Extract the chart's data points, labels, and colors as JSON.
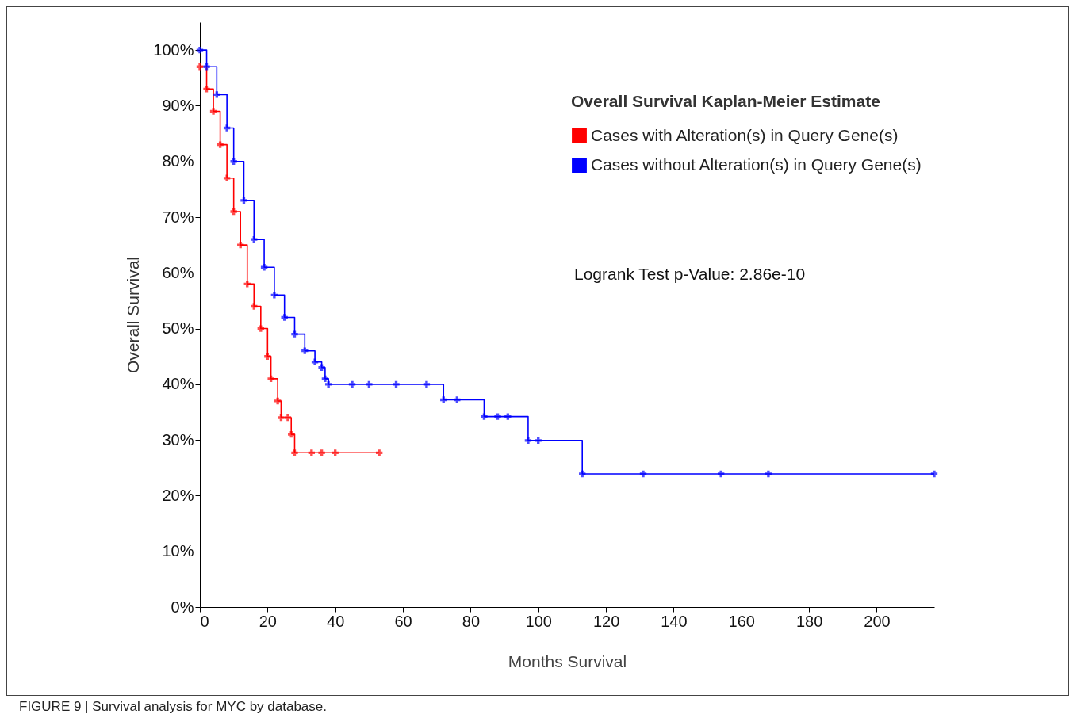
{
  "chart_data": {
    "type": "step",
    "xlabel": "Months Survival",
    "ylabel": "Overall Survival",
    "legend_title": "Overall Survival Kaplan-Meier Estimate",
    "legend": "top right",
    "marker": "cross",
    "grid": false,
    "xlim": [
      0,
      217
    ],
    "xticks": [
      0,
      20,
      40,
      60,
      80,
      100,
      120,
      140,
      160,
      180,
      200
    ],
    "ylim": [
      0,
      105
    ],
    "yticks": [
      {
        "value": 0,
        "label": "0%"
      },
      {
        "value": 10,
        "label": "10%"
      },
      {
        "value": 20,
        "label": "20%"
      },
      {
        "value": 30,
        "label": "30%"
      },
      {
        "value": 40,
        "label": "40%"
      },
      {
        "value": 50,
        "label": "50%"
      },
      {
        "value": 60,
        "label": "60%"
      },
      {
        "value": 70,
        "label": "70%"
      },
      {
        "value": 80,
        "label": "80%"
      },
      {
        "value": 90,
        "label": "90%"
      },
      {
        "value": 100,
        "label": "100%"
      }
    ],
    "series": [
      {
        "name": "Cases with Alteration(s) in Query Gene(s)",
        "color": "#ff0000",
        "x": [
          0,
          2,
          4,
          6,
          8,
          10,
          12,
          14,
          16,
          18,
          20,
          21,
          23,
          24,
          26,
          27,
          28,
          33,
          36,
          40,
          53
        ],
        "values": [
          97,
          93,
          89,
          83,
          77,
          71,
          65,
          58,
          54,
          50,
          45,
          41,
          37,
          34,
          34,
          31,
          27.7,
          27.7,
          27.7,
          27.7,
          27.7
        ]
      },
      {
        "name": "Cases without Alteration(s) in Query Gene(s)",
        "color": "#0000ff",
        "x": [
          0,
          2,
          5,
          8,
          10,
          13,
          16,
          19,
          22,
          25,
          28,
          31,
          34,
          36,
          37,
          38,
          45,
          50,
          58,
          67,
          72,
          76,
          84,
          88,
          91,
          97,
          100,
          113,
          131,
          154,
          168,
          217
        ],
        "values": [
          100,
          97,
          92,
          86,
          80,
          73,
          66,
          61,
          56,
          52,
          49,
          46,
          44,
          43,
          41,
          40,
          40,
          40,
          40,
          40,
          37.2,
          37.2,
          34.2,
          34.2,
          34.2,
          29.9,
          29.9,
          23.9,
          23.9,
          23.9,
          23.9,
          23.9
        ]
      }
    ],
    "annotations": [
      "Logrank Test p-Value: 2.86e-10",
      "FIGURE 9 | Survival analysis for MYC by database."
    ]
  }
}
